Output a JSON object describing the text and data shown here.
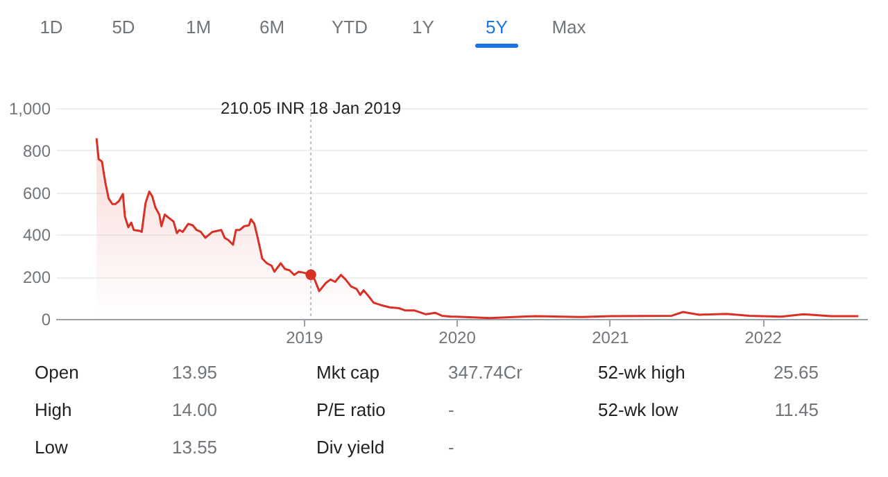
{
  "chart_data": {
    "type": "area",
    "x": [
      "2017-08-24",
      "2017-08-29",
      "2017-09-06",
      "2017-09-14",
      "2017-09-22",
      "2017-10-01",
      "2017-10-08",
      "2017-10-17",
      "2017-10-26",
      "2017-10-31",
      "2017-11-08",
      "2017-11-15",
      "2017-11-21",
      "2017-12-05",
      "2017-12-10",
      "2017-12-19",
      "2017-12-28",
      "2018-01-04",
      "2018-01-12",
      "2018-01-21",
      "2018-01-26",
      "2018-02-03",
      "2018-02-13",
      "2018-02-24",
      "2018-03-04",
      "2018-03-10",
      "2018-03-18",
      "2018-03-31",
      "2018-04-11",
      "2018-04-20",
      "2018-04-30",
      "2018-05-11",
      "2018-05-28",
      "2018-06-18",
      "2018-06-26",
      "2018-07-05",
      "2018-07-16",
      "2018-07-23",
      "2018-08-01",
      "2018-08-12",
      "2018-08-23",
      "2018-08-28",
      "2018-09-05",
      "2018-09-13",
      "2018-09-24",
      "2018-10-05",
      "2018-10-16",
      "2018-10-23",
      "2018-11-07",
      "2018-11-17",
      "2018-11-28",
      "2018-12-09",
      "2018-12-20",
      "2018-12-31",
      "2019-01-18",
      "2019-01-27",
      "2019-02-07",
      "2019-02-23",
      "2019-03-06",
      "2019-03-17",
      "2019-03-31",
      "2019-04-11",
      "2019-04-24",
      "2019-05-07",
      "2019-05-16",
      "2019-05-24",
      "2019-06-04",
      "2019-06-17",
      "2019-07-04",
      "2019-07-25",
      "2019-08-16",
      "2019-09-01",
      "2019-09-23",
      "2019-10-20",
      "2019-11-11",
      "2019-11-27",
      "2019-12-19",
      "2020-01-01",
      "2020-03-20",
      "2020-07-07",
      "2020-10-24",
      "2021-01-01",
      "2021-05-29",
      "2021-06-25",
      "2021-08-03",
      "2021-10-07",
      "2021-12-01",
      "2022-01-01",
      "2022-02-14",
      "2022-04-09",
      "2022-06-13",
      "2022-08-18"
    ],
    "series": [
      {
        "color": "#d93025",
        "values": [
          857,
          758,
          747,
          648,
          571,
          545,
          545,
          560,
          593,
          484,
          435,
          457,
          422,
          418,
          413,
          549,
          604,
          582,
          527,
          495,
          440,
          495,
          479,
          462,
          407,
          422,
          413,
          451,
          444,
          422,
          413,
          385,
          413,
          422,
          385,
          374,
          352,
          422,
          422,
          440,
          444,
          473,
          451,
          385,
          286,
          264,
          253,
          224,
          264,
          237,
          231,
          209,
          224,
          220,
          210,
          187,
          132,
          171,
          187,
          176,
          209,
          187,
          154,
          143,
          114,
          136,
          110,
          77,
          66,
          55,
          51,
          40,
          40,
          22,
          29,
          15,
          11,
          11,
          4,
          13,
          9,
          13,
          15,
          33,
          20,
          24,
          15,
          13,
          11,
          22,
          13,
          13
        ]
      }
    ],
    "xlim": [
      "2017-05-18",
      "2022-09-08"
    ],
    "xticks": [
      "2019",
      "2020",
      "2021",
      "2022"
    ],
    "ylim": [
      0,
      1000
    ],
    "yticks": [
      0,
      200,
      400,
      600,
      800,
      {
        "value": 1000,
        "label": "1,000"
      }
    ],
    "grid": "y",
    "marker": "none",
    "line_style": "solid",
    "ref_lines": [
      {
        "axis": "x",
        "value": "2019-01-18",
        "label": null,
        "color": "#bdc1c6",
        "line_style": "dotted"
      }
    ],
    "annotations": [
      "1D",
      "5D",
      "1M",
      "6M",
      "YTD",
      "1Y",
      "5Y",
      "Max",
      "Open",
      "13.95",
      "High",
      "14.00",
      "Low",
      "13.55",
      "Mkt cap",
      "347.74Cr",
      "P/E ratio",
      "-",
      "Div yield",
      "-",
      "52-wk high",
      "25.65",
      "52-wk low",
      "11.45",
      "210.05 INR  18 Jan 2019"
    ]
  }
}
